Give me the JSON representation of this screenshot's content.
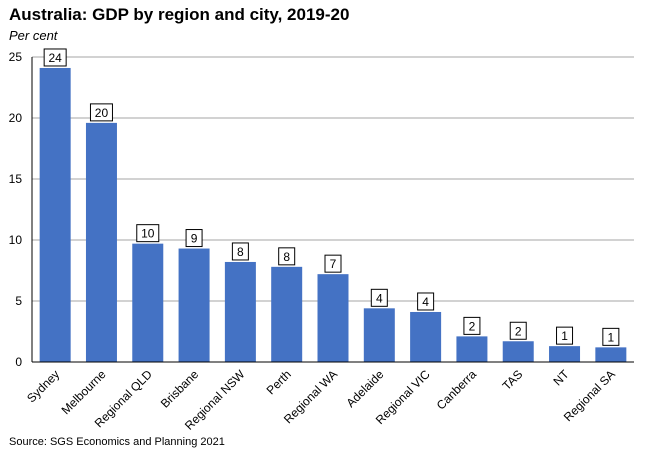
{
  "colors": {
    "bar": "#4472C4",
    "gridline": "#A6A6A6",
    "axis": "#000000",
    "label_border": "#000000"
  },
  "chart_data": {
    "type": "bar",
    "title": "Australia: GDP by region and city, 2019-20",
    "subtitle": "Per cent",
    "source": "Source: SGS Economics and Planning 2021",
    "xlabel": "",
    "ylabel": "Per cent",
    "ylim": [
      0,
      25
    ],
    "yticks": [
      0,
      5,
      10,
      15,
      20,
      25
    ],
    "grid": true,
    "legend": "none",
    "categories": [
      "Sydney",
      "Melbourne",
      "Regional QLD",
      "Brisbane",
      "Regional NSW",
      "Perth",
      "Regional WA",
      "Adelaide",
      "Regional VIC",
      "Canberra",
      "TAS",
      "NT",
      "Regional SA"
    ],
    "values": [
      24.1,
      19.6,
      9.7,
      9.3,
      8.2,
      7.8,
      7.2,
      4.4,
      4.1,
      2.1,
      1.7,
      1.3,
      1.2
    ],
    "data_labels": [
      "24",
      "20",
      "10",
      "9",
      "8",
      "8",
      "7",
      "4",
      "4",
      "2",
      "2",
      "1",
      "1"
    ]
  }
}
